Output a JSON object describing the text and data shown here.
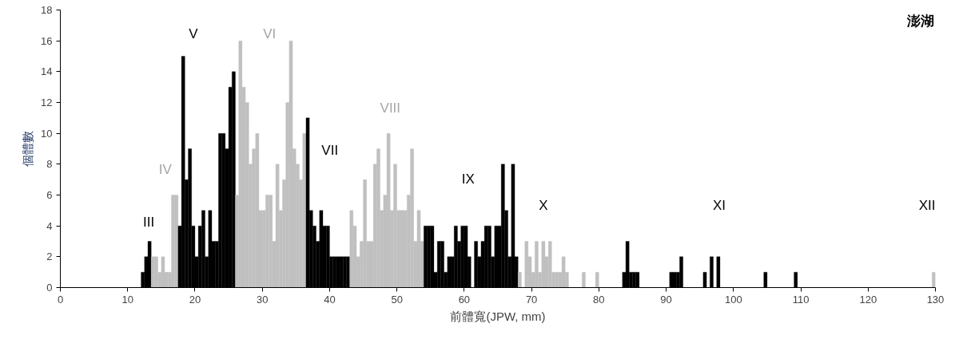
{
  "chart_data": {
    "type": "histogram",
    "xlabel": "前體寬(JPW, mm)",
    "ylabel": "個體數",
    "bins": [
      12.0,
      12.5,
      13.0,
      13.5,
      14.0,
      14.5,
      15.0,
      15.5,
      16.0,
      16.5,
      17.0,
      17.5,
      18.0,
      18.5,
      19.0,
      19.5,
      20.0,
      20.5,
      21.0,
      21.5,
      22.0,
      22.5,
      23.0,
      23.5,
      24.0,
      24.5,
      25.0,
      25.5,
      26.0,
      26.5,
      27.0,
      27.5,
      28.0,
      28.5,
      29.0,
      29.5,
      30.0,
      30.5,
      31.0,
      31.5,
      32.0,
      32.5,
      33.0,
      33.5,
      34.0,
      34.5,
      35.0,
      35.5,
      36.0,
      36.5,
      37.0,
      37.5,
      38.0,
      38.5,
      39.0,
      39.5,
      40.0,
      40.5,
      41.0,
      41.5,
      42.0,
      42.5,
      43.0,
      43.5,
      44.0,
      44.5,
      45.0,
      45.5,
      46.0,
      46.5,
      47.0,
      47.5,
      48.0,
      48.5,
      49.0,
      49.5,
      50.0,
      50.5,
      51.0,
      51.5,
      52.0,
      52.5,
      53.0,
      53.5,
      54.0,
      54.5,
      55.0,
      55.5,
      56.0,
      56.5,
      57.0,
      57.5,
      58.0,
      58.5,
      59.0,
      59.5,
      60.0,
      60.5,
      61.0,
      61.5,
      62.0,
      62.5,
      63.0,
      63.5,
      64.0,
      64.5,
      65.0,
      65.5,
      66.0,
      66.5,
      67.0,
      67.5,
      68.0,
      68.5,
      69.0,
      69.5,
      70.0,
      70.5,
      71.0,
      71.5,
      72.0,
      72.5,
      73.0,
      73.5,
      74.0,
      74.5,
      75.0,
      75.5,
      77.5,
      78.0,
      79.5,
      80.0,
      83.5,
      84.0,
      84.5,
      85.0,
      85.5,
      86.0,
      90.5,
      91.0,
      91.5,
      92.0,
      92.5,
      95.5,
      96.0,
      96.5,
      97.0,
      97.5,
      98.0,
      104.5,
      105.0,
      109.0,
      109.5,
      129.5,
      130.0
    ],
    "values": [
      1,
      2,
      3,
      2,
      2,
      1,
      2,
      1,
      1,
      6,
      6,
      4,
      15,
      7,
      9,
      4,
      2,
      4,
      5,
      2,
      5,
      3,
      3,
      10,
      10,
      9,
      13,
      14,
      6,
      16,
      13,
      12,
      8,
      9,
      10,
      5,
      5,
      6,
      6,
      3,
      8,
      5,
      7,
      12,
      16,
      9,
      8,
      7,
      10,
      11,
      5,
      4,
      3,
      5,
      4,
      4,
      2,
      2,
      2,
      2,
      2,
      2,
      5,
      4,
      2,
      3,
      7,
      3,
      3,
      8,
      9,
      5,
      6,
      10,
      5,
      8,
      5,
      5,
      5,
      6,
      9,
      3,
      5,
      3,
      4,
      4,
      4,
      1,
      3,
      3,
      1,
      2,
      2,
      4,
      3,
      4,
      4,
      2,
      0,
      3,
      2,
      3,
      4,
      4,
      2,
      4,
      4,
      8,
      5,
      2,
      8,
      2,
      1,
      0,
      3,
      2,
      1,
      3,
      1,
      3,
      2,
      3,
      1,
      1,
      1,
      2,
      1,
      0,
      1,
      0,
      1,
      0,
      1,
      3,
      1,
      1,
      1,
      0,
      1,
      1,
      1,
      2,
      0,
      1,
      0,
      2,
      0,
      2,
      0,
      1,
      0,
      1,
      0,
      1
    ],
    "colors": [
      "#000000",
      "#000000",
      "#000000",
      "#c0c0c0",
      "#c0c0c0",
      "#c0c0c0",
      "#c0c0c0",
      "#c0c0c0",
      "#c0c0c0",
      "#c0c0c0",
      "#c0c0c0",
      "#000000",
      "#000000",
      "#000000",
      "#000000",
      "#000000",
      "#000000",
      "#000000",
      "#000000",
      "#000000",
      "#000000",
      "#000000",
      "#000000",
      "#000000",
      "#000000",
      "#000000",
      "#000000",
      "#000000",
      "#c0c0c0",
      "#c0c0c0",
      "#c0c0c0",
      "#c0c0c0",
      "#c0c0c0",
      "#c0c0c0",
      "#c0c0c0",
      "#c0c0c0",
      "#c0c0c0",
      "#c0c0c0",
      "#c0c0c0",
      "#c0c0c0",
      "#c0c0c0",
      "#c0c0c0",
      "#c0c0c0",
      "#c0c0c0",
      "#c0c0c0",
      "#c0c0c0",
      "#c0c0c0",
      "#c0c0c0",
      "#c0c0c0",
      "#000000",
      "#000000",
      "#000000",
      "#000000",
      "#000000",
      "#000000",
      "#000000",
      "#000000",
      "#000000",
      "#000000",
      "#000000",
      "#000000",
      "#000000",
      "#c0c0c0",
      "#c0c0c0",
      "#c0c0c0",
      "#c0c0c0",
      "#c0c0c0",
      "#c0c0c0",
      "#c0c0c0",
      "#c0c0c0",
      "#c0c0c0",
      "#c0c0c0",
      "#c0c0c0",
      "#c0c0c0",
      "#c0c0c0",
      "#c0c0c0",
      "#c0c0c0",
      "#c0c0c0",
      "#c0c0c0",
      "#c0c0c0",
      "#c0c0c0",
      "#c0c0c0",
      "#c0c0c0",
      "#c0c0c0",
      "#000000",
      "#000000",
      "#000000",
      "#000000",
      "#000000",
      "#000000",
      "#000000",
      "#000000",
      "#000000",
      "#000000",
      "#000000",
      "#000000",
      "#000000",
      "#000000",
      "#000000",
      "#000000",
      "#000000",
      "#000000",
      "#000000",
      "#000000",
      "#000000",
      "#000000",
      "#000000",
      "#000000",
      "#000000",
      "#000000",
      "#000000",
      "#000000",
      "#c0c0c0",
      "#c0c0c0",
      "#c0c0c0",
      "#c0c0c0",
      "#c0c0c0",
      "#c0c0c0",
      "#c0c0c0",
      "#c0c0c0",
      "#c0c0c0",
      "#c0c0c0",
      "#c0c0c0",
      "#c0c0c0",
      "#c0c0c0",
      "#c0c0c0",
      "#c0c0c0",
      "#c0c0c0",
      "#c0c0c0",
      "#c0c0c0",
      "#c0c0c0",
      "#c0c0c0",
      "#000000",
      "#000000",
      "#000000",
      "#000000",
      "#000000",
      "#c0c0c0",
      "#000000",
      "#000000",
      "#000000",
      "#000000",
      "#c0c0c0",
      "#000000",
      "#c0c0c0",
      "#000000",
      "#c0c0c0",
      "#000000",
      "#c0c0c0",
      "#000000",
      "#c0c0c0",
      "#000000",
      "#c0c0c0",
      "#c0c0c0"
    ],
    "xlim": [
      0,
      130
    ],
    "xticks": [
      0,
      10,
      20,
      30,
      40,
      50,
      60,
      70,
      80,
      90,
      100,
      110,
      120,
      130
    ],
    "ylim": [
      0,
      18
    ],
    "yticks": [
      0,
      2,
      4,
      6,
      8,
      10,
      12,
      14,
      16,
      18
    ],
    "grid": false,
    "annotations": [
      "III",
      "IV",
      "V",
      "VI",
      "VII",
      "VIII",
      "IX",
      "X",
      "XI",
      "XII",
      "澎湖"
    ]
  }
}
